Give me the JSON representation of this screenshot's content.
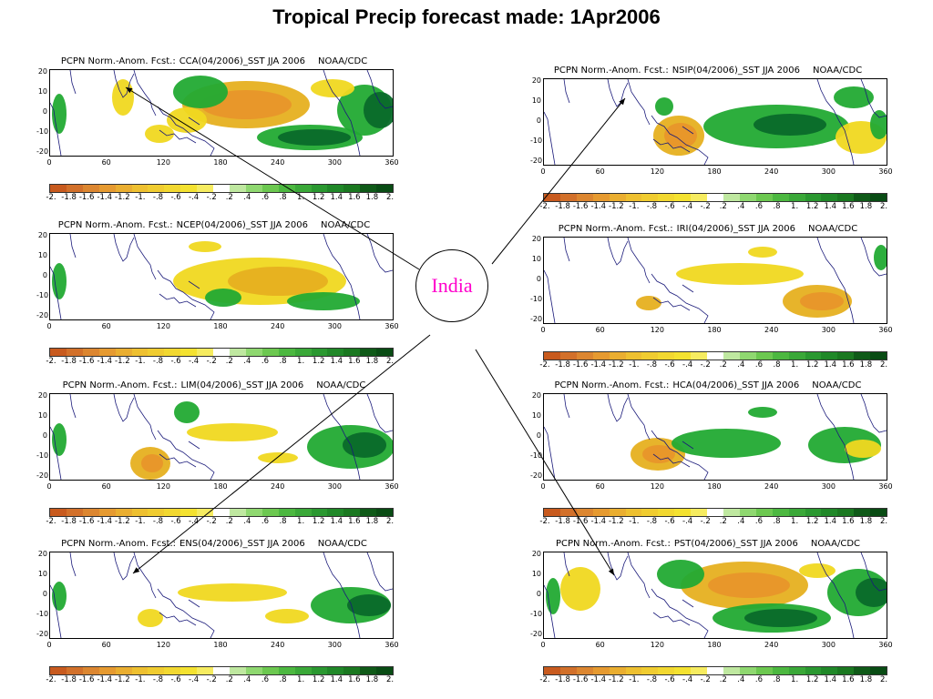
{
  "page": {
    "title": "Tropical Precip forecast made: 1Apr2006"
  },
  "center_label": "India",
  "colors": {
    "brown": "#c8501e",
    "orange": "#e8962a",
    "gold": "#e6b020",
    "yellow": "#f0d820",
    "light_green": "#66cc44",
    "green": "#22aa33",
    "dark_green": "#0a6a2a",
    "coast": "#1a1a7a",
    "magenta": "#ff00cc"
  },
  "colorbar": {
    "labels": [
      "-2.",
      "-1.8",
      "-1.6",
      "-1.4",
      "-1.2",
      "-1.",
      "-.8",
      "-.6",
      "-.4",
      "-.2",
      ".2",
      ".4",
      ".6",
      ".8",
      "1.",
      "1.2",
      "1.4",
      "1.6",
      "1.8",
      "2."
    ],
    "colors": [
      "#c85a1e",
      "#d2702a",
      "#dc8630",
      "#e69a30",
      "#eaae30",
      "#eec030",
      "#f0cc30",
      "#f2d830",
      "#f4e230",
      "#f6ec60",
      "#ffffff",
      "#bfe8a0",
      "#8fd870",
      "#6cc850",
      "#4cb840",
      "#3aa838",
      "#2a9830",
      "#208828",
      "#1a7820",
      "#0f5a18",
      "#094c14"
    ]
  },
  "axes": {
    "y_ticks": [
      "20",
      "10",
      "0",
      "-10",
      "-20"
    ],
    "x_ticks": [
      "0",
      "60",
      "120",
      "180",
      "240",
      "300",
      "360"
    ]
  },
  "panels": [
    {
      "id": "cca",
      "title_left": "PCPN Norm.-Anom. Fcst.:",
      "title_mid": "CCA(04/2006)_SST JJA 2006",
      "title_right": "NOAA/CDC"
    },
    {
      "id": "nsip",
      "title_left": "PCPN Norm.-Anom. Fcst.:",
      "title_mid": "NSIP(04/2006)_SST JJA 2006",
      "title_right": "NOAA/CDC"
    },
    {
      "id": "ncep",
      "title_left": "PCPN Norm.-Anom. Fcst.:",
      "title_mid": "NCEP(04/2006)_SST JJA 2006",
      "title_right": "NOAA/CDC"
    },
    {
      "id": "iri",
      "title_left": "PCPN Norm.-Anom. Fcst.:",
      "title_mid": "IRI(04/2006)_SST JJA 2006",
      "title_right": "NOAA/CDC"
    },
    {
      "id": "lim",
      "title_left": "PCPN Norm.-Anom. Fcst.:",
      "title_mid": "LIM(04/2006)_SST JJA 2006",
      "title_right": "NOAA/CDC"
    },
    {
      "id": "hca",
      "title_left": "PCPN Norm.-Anom. Fcst.:",
      "title_mid": "HCA(04/2006)_SST JJA 2006",
      "title_right": "NOAA/CDC"
    },
    {
      "id": "ens",
      "title_left": "PCPN Norm.-Anom. Fcst.:",
      "title_mid": "ENS(04/2006)_SST JJA 2006",
      "title_right": "NOAA/CDC"
    },
    {
      "id": "pst",
      "title_left": "PCPN Norm.-Anom. Fcst.:",
      "title_mid": "PST(04/2006)_SST JJA 2006",
      "title_right": "NOAA/CDC"
    }
  ]
}
